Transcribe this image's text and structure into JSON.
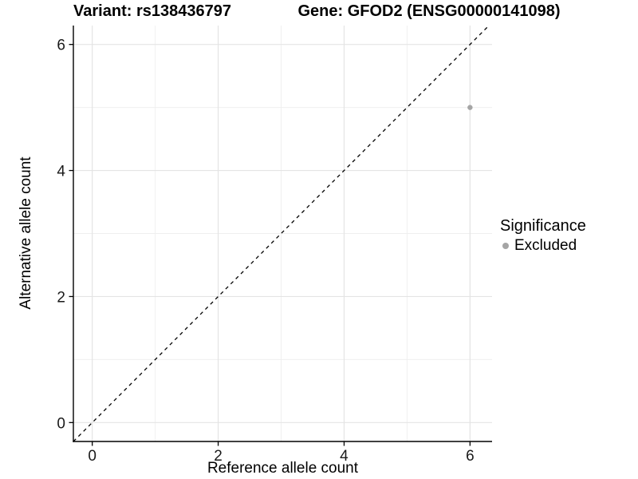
{
  "chart_data": {
    "type": "scatter",
    "titles": {
      "left": "Variant: rs138436797",
      "right": "Gene: GFOD2 (ENSG00000141098)"
    },
    "xlabel": "Reference allele count",
    "ylabel": "Alternative allele count",
    "xlim": [
      -0.3,
      6.35
    ],
    "ylim": [
      -0.3,
      6.3
    ],
    "x_ticks": [
      0,
      2,
      4,
      6
    ],
    "y_ticks": [
      0,
      2,
      4,
      6
    ],
    "x_minor_ticks": [
      1,
      3,
      5
    ],
    "y_minor_ticks": [
      1,
      3,
      5
    ],
    "grid": "on",
    "points": [
      {
        "x": 6,
        "y": 5,
        "significance": "Excluded"
      }
    ],
    "identity_line": {
      "slope": 1,
      "intercept": 0,
      "style": "dashed"
    },
    "legend": {
      "title": "Significance",
      "position": "right",
      "entries": [
        {
          "label": "Excluded",
          "color": "#a5a5a5"
        }
      ]
    },
    "colors": {
      "point": "#a5a5a5",
      "grid_major": "#e4e4e4",
      "grid_minor": "#efefef",
      "axis_line": "#000000",
      "dashed_line": "#000000"
    }
  }
}
